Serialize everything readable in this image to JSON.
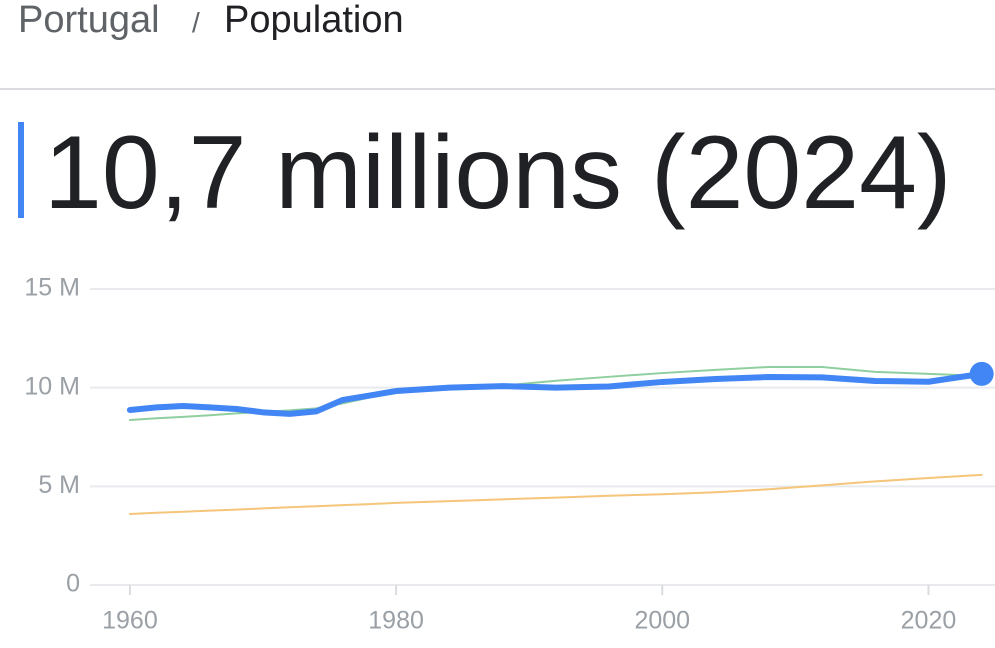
{
  "breadcrumb": {
    "country": "Portugal",
    "separator": "/",
    "topic": "Population"
  },
  "chart_data": {
    "type": "line",
    "title": "10,7 millions (2024)",
    "x": [
      1960,
      1962,
      1964,
      1966,
      1968,
      1970,
      1972,
      1974,
      1976,
      1978,
      1980,
      1984,
      1988,
      1992,
      1996,
      2000,
      2004,
      2008,
      2012,
      2016,
      2020,
      2024
    ],
    "series": [
      {
        "color": "#8fcf9f",
        "width": 2,
        "values": [
          8.36,
          8.45,
          8.52,
          8.6,
          8.7,
          8.77,
          8.85,
          8.95,
          9.2,
          9.5,
          9.73,
          9.93,
          10.1,
          10.35,
          10.55,
          10.74,
          10.9,
          11.05,
          11.05,
          10.8,
          10.7,
          10.6
        ]
      },
      {
        "color": "#f5c57a",
        "width": 2,
        "values": [
          3.6,
          3.66,
          3.71,
          3.77,
          3.82,
          3.88,
          3.94,
          3.99,
          4.05,
          4.1,
          4.16,
          4.25,
          4.34,
          4.43,
          4.52,
          4.6,
          4.7,
          4.85,
          5.05,
          5.25,
          5.42,
          5.58
        ]
      },
      {
        "color": "#4285f4",
        "width": 6,
        "end_marker": true,
        "values": [
          8.87,
          9.0,
          9.07,
          9.0,
          8.92,
          8.75,
          8.67,
          8.8,
          9.38,
          9.6,
          9.83,
          10.0,
          10.08,
          10.0,
          10.06,
          10.29,
          10.44,
          10.54,
          10.52,
          10.34,
          10.3,
          10.7
        ]
      }
    ],
    "xlim": [
      1957,
      2025
    ],
    "xticks": [
      1960,
      1980,
      2000,
      2020
    ],
    "ylim": [
      0,
      15
    ],
    "yticks": [
      0,
      {
        "value": 5,
        "label": "5 M"
      },
      {
        "value": 10,
        "label": "10 M"
      },
      {
        "value": 15,
        "label": "15 M"
      }
    ],
    "grid": true
  }
}
